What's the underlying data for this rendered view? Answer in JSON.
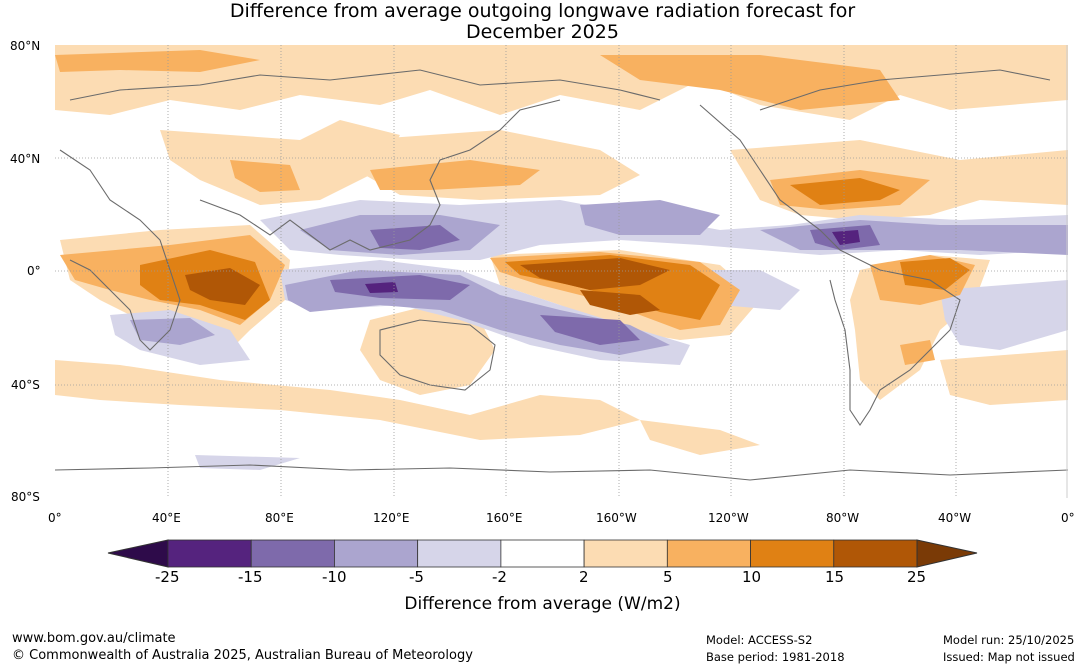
{
  "title": {
    "line1": "Difference from average outgoing longwave radiation forecast for",
    "line2": "December 2025"
  },
  "map": {
    "lat_labels": [
      "80°N",
      "40°N",
      "0°",
      "40°S",
      "80°S"
    ],
    "lon_labels": [
      "0°",
      "40°E",
      "80°E",
      "120°E",
      "160°E",
      "160°W",
      "120°W",
      "80°W",
      "40°W",
      "0°"
    ]
  },
  "colorbar": {
    "ticks": [
      "-25",
      "-15",
      "-10",
      "-5",
      "-2",
      "2",
      "5",
      "10",
      "15",
      "25"
    ],
    "colors": [
      "#2e0b4a",
      "#55237e",
      "#7e6aab",
      "#aba5cf",
      "#d6d5e9",
      "#ffffff",
      "#fcdcb3",
      "#f8b160",
      "#e08114",
      "#b05706",
      "#7a3a06"
    ],
    "title": "Difference from average (W/m2)"
  },
  "footer": {
    "website": "www.bom.gov.au/climate",
    "copyright": "© Commonwealth of Australia 2025, Australian Bureau of Meteorology",
    "model": "Model: ACCESS-S2",
    "base_period": "Base period: 1981-2018",
    "model_run": "Model run: 25/10/2025",
    "issued": "Issued: Map not issued"
  }
}
